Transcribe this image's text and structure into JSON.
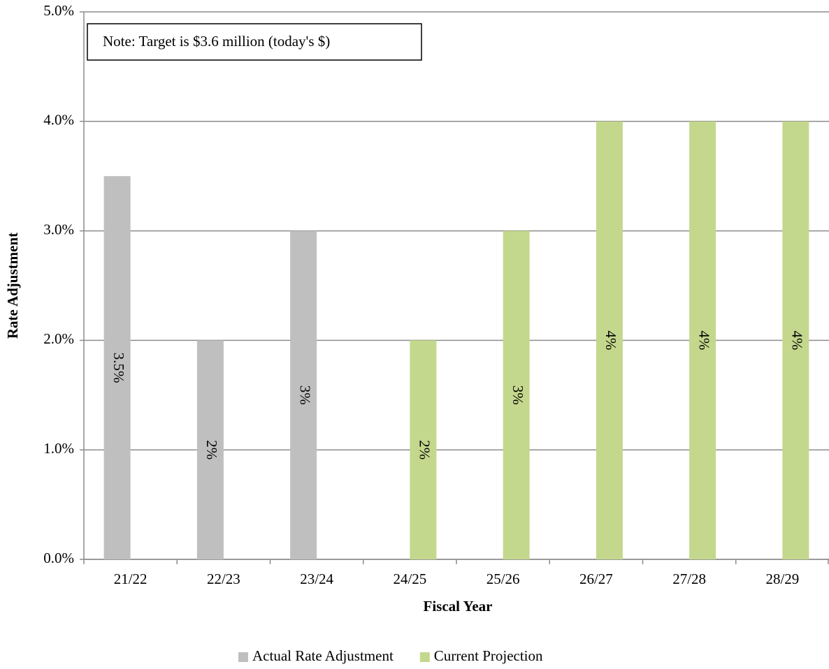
{
  "chart_data": {
    "type": "bar",
    "annotation": "Note: Target is $3.6 million (today's $)",
    "x_label": "Fiscal Year",
    "y_label": "Rate Adjustment",
    "categories": [
      "21/22",
      "22/23",
      "23/24",
      "24/25",
      "25/26",
      "26/27",
      "27/28",
      "28/29"
    ],
    "series": [
      {
        "name": "Actual Rate Adjustment",
        "color": "#bfbfbf",
        "values": [
          3.5,
          2,
          3,
          null,
          null,
          null,
          null,
          null
        ],
        "value_labels": [
          "3.5%",
          "2%",
          "3%",
          null,
          null,
          null,
          null,
          null
        ]
      },
      {
        "name": "Current Projection",
        "color": "#c4d88d",
        "values": [
          null,
          null,
          null,
          2,
          3,
          4,
          4,
          4
        ],
        "value_labels": [
          null,
          null,
          null,
          "2%",
          "3%",
          "4%",
          "4%",
          "4%"
        ]
      }
    ],
    "ylim": [
      0,
      5
    ],
    "yticks": [
      {
        "value": 0,
        "label": "0.0%"
      },
      {
        "value": 1,
        "label": "1.0%"
      },
      {
        "value": 2,
        "label": "2.0%"
      },
      {
        "value": 3,
        "label": "3.0%"
      },
      {
        "value": 4,
        "label": "4.0%"
      },
      {
        "value": 5,
        "label": "5.0%"
      }
    ],
    "grid": true,
    "legend": "bottom"
  }
}
